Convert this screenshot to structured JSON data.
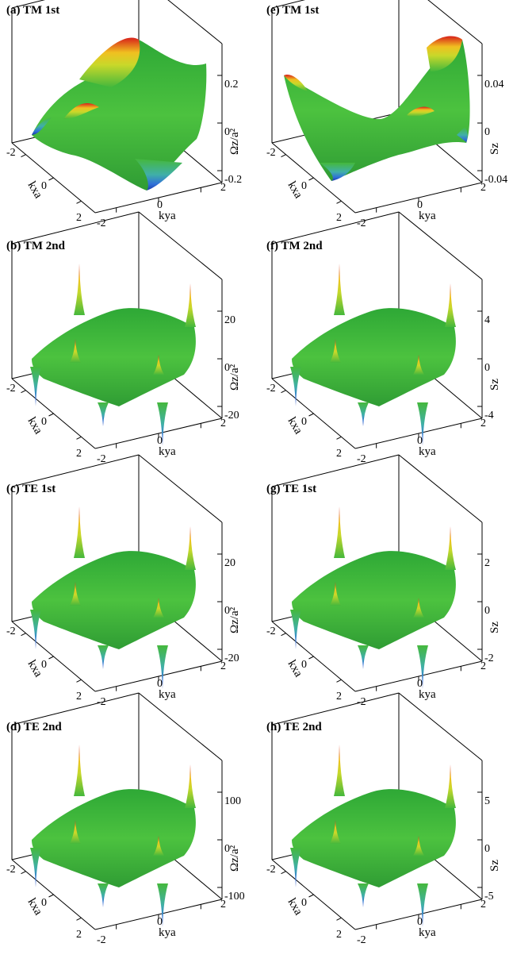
{
  "chart_data": [
    {
      "type": "surface",
      "title": "(a) TM 1st",
      "xlabel": "kxa",
      "ylabel": "kya",
      "zlabel": "Ωz/a²",
      "x_ticks": [
        "-2",
        "0",
        "2"
      ],
      "y_ticks": [
        "-2",
        "0",
        "2"
      ],
      "z_ticks": [
        "0.2",
        "0",
        "-0.2"
      ],
      "zlim": [
        -0.2,
        0.2
      ]
    },
    {
      "type": "surface",
      "title": "(b) TM 2nd",
      "xlabel": "kxa",
      "ylabel": "kya",
      "zlabel": "Ωz/a²",
      "x_ticks": [
        "-2",
        "0",
        "2"
      ],
      "y_ticks": [
        "-2",
        "0",
        "2"
      ],
      "z_ticks": [
        "20",
        "0",
        "-20"
      ],
      "zlim": [
        -20,
        20
      ]
    },
    {
      "type": "surface",
      "title": "(c) TE 1st",
      "xlabel": "kxa",
      "ylabel": "kya",
      "zlabel": "Ωz/a²",
      "x_ticks": [
        "-2",
        "0",
        "2"
      ],
      "y_ticks": [
        "-2",
        "0",
        "2"
      ],
      "z_ticks": [
        "20",
        "0",
        "-20"
      ],
      "zlim": [
        -20,
        20
      ]
    },
    {
      "type": "surface",
      "title": "(d) TE 2nd",
      "xlabel": "kxa",
      "ylabel": "kya",
      "zlabel": "Ωz/a²",
      "x_ticks": [
        "-2",
        "0",
        "2"
      ],
      "y_ticks": [
        "-2",
        "0",
        "2"
      ],
      "z_ticks": [
        "100",
        "0",
        "-100"
      ],
      "zlim": [
        -100,
        100
      ]
    },
    {
      "type": "surface",
      "title": "(e) TM 1st",
      "xlabel": "kxa",
      "ylabel": "kya",
      "zlabel": "Sz",
      "x_ticks": [
        "-2",
        "0",
        "2"
      ],
      "y_ticks": [
        "-2",
        "0",
        "2"
      ],
      "z_ticks": [
        "0.04",
        "0",
        "-0.04"
      ],
      "zlim": [
        -0.04,
        0.04
      ]
    },
    {
      "type": "surface",
      "title": "(f) TM 2nd",
      "xlabel": "kxa",
      "ylabel": "kya",
      "zlabel": "Sz",
      "x_ticks": [
        "-2",
        "0",
        "2"
      ],
      "y_ticks": [
        "-2",
        "0",
        "2"
      ],
      "z_ticks": [
        "4",
        "0",
        "-4"
      ],
      "zlim": [
        -4,
        4
      ]
    },
    {
      "type": "surface",
      "title": "(g) TE 1st",
      "xlabel": "kxa",
      "ylabel": "kya",
      "zlabel": "Sz",
      "x_ticks": [
        "-2",
        "0",
        "2"
      ],
      "y_ticks": [
        "-2",
        "0",
        "2"
      ],
      "z_ticks": [
        "2",
        "0",
        "-2"
      ],
      "zlim": [
        -2,
        2
      ]
    },
    {
      "type": "surface",
      "title": "(h) TE 2nd",
      "xlabel": "kxa",
      "ylabel": "kya",
      "zlabel": "Sz",
      "x_ticks": [
        "-2",
        "0",
        "2"
      ],
      "y_ticks": [
        "-2",
        "0",
        "2"
      ],
      "z_ticks": [
        "5",
        "0",
        "-5"
      ],
      "zlim": [
        -8,
        8
      ]
    }
  ],
  "colors": {
    "low": "#1f3fbf",
    "mid": "#3fb53a",
    "high": "#e0281c",
    "warm": "#f0d020"
  }
}
